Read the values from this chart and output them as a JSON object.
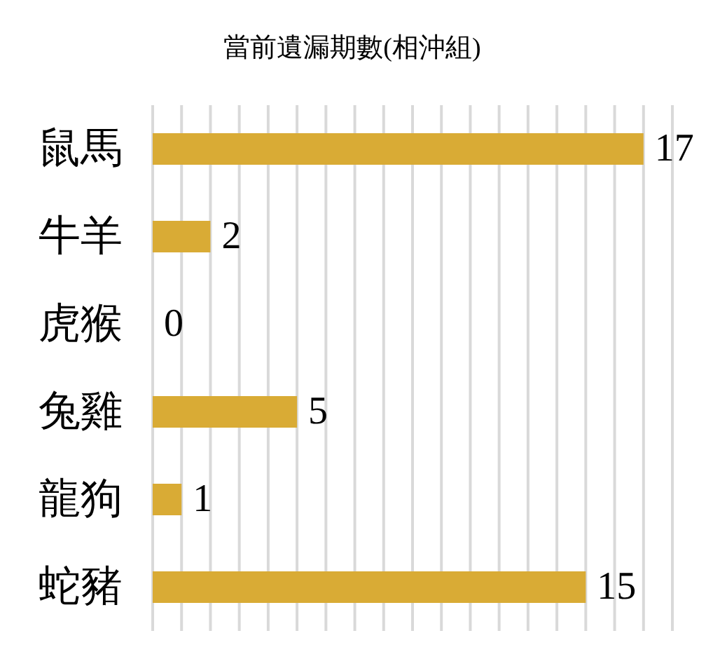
{
  "chart_data": {
    "type": "bar",
    "title": "當前遺漏期數(相沖組)",
    "orientation": "horizontal",
    "categories": [
      "鼠馬",
      "牛羊",
      "虎猴",
      "兔雞",
      "龍狗",
      "蛇豬"
    ],
    "values": [
      17,
      2,
      0,
      5,
      1,
      15
    ],
    "color": "#d9ab35",
    "xlim": [
      0,
      18
    ],
    "xticks": [
      {
        "value": 0,
        "label": null
      },
      {
        "value": 1,
        "label": null
      },
      {
        "value": 2,
        "label": null
      },
      {
        "value": 3,
        "label": null
      },
      {
        "value": 4,
        "label": null
      },
      {
        "value": 5,
        "label": null
      },
      {
        "value": 6,
        "label": null
      },
      {
        "value": 7,
        "label": null
      },
      {
        "value": 8,
        "label": null
      },
      {
        "value": 9,
        "label": null
      },
      {
        "value": 10,
        "label": null
      },
      {
        "value": 11,
        "label": null
      },
      {
        "value": 12,
        "label": null
      },
      {
        "value": 13,
        "label": null
      },
      {
        "value": 14,
        "label": null
      },
      {
        "value": 15,
        "label": null
      },
      {
        "value": 16,
        "label": null
      },
      {
        "value": 17,
        "label": null
      },
      {
        "value": 18,
        "label": null
      }
    ],
    "grid": "x",
    "tick_labels": "y",
    "data_labels": true
  }
}
